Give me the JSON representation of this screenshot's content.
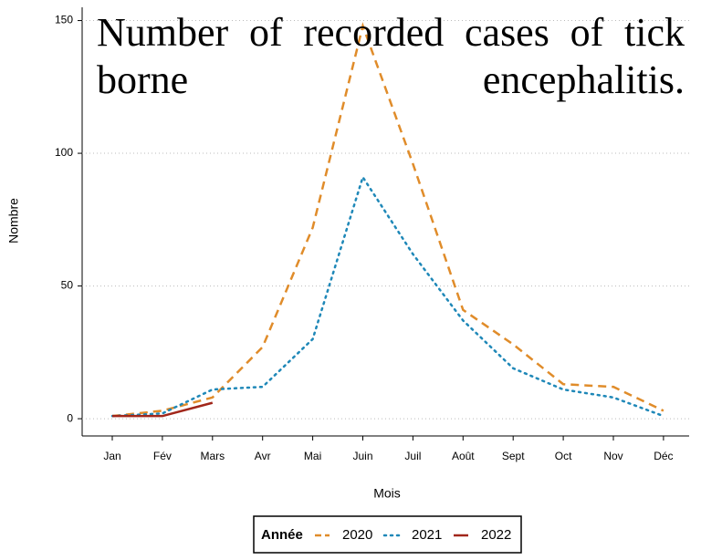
{
  "chart_data": {
    "type": "line",
    "title": "Number of recorded cases of tick borne encephalitis.",
    "x_label": "Mois",
    "y_label": "Nombre",
    "categories": [
      "Jan",
      "Fév",
      "Mars",
      "Avr",
      "Mai",
      "Juin",
      "Juil",
      "Août",
      "Sept",
      "Oct",
      "Nov",
      "Déc"
    ],
    "series": [
      {
        "name": "2020",
        "color": "#e08c2a",
        "dash": "dashed",
        "values": [
          1,
          3,
          8,
          27,
          72,
          148,
          96,
          41,
          28,
          13,
          12,
          3
        ]
      },
      {
        "name": "2021",
        "color": "#1f88b8",
        "dash": "dotted",
        "values": [
          1,
          2,
          11,
          12,
          30,
          91,
          62,
          37,
          19,
          11,
          8,
          1
        ]
      },
      {
        "name": "2022",
        "color": "#a1261a",
        "dash": "solid",
        "values": [
          1,
          1,
          6,
          null,
          null,
          null,
          null,
          null,
          null,
          null,
          null,
          null
        ]
      }
    ],
    "legend_title": "Année",
    "legend_position": "bottom",
    "ylim": [
      -6.5,
      155
    ],
    "yticks": [
      0,
      50,
      100,
      150
    ],
    "grid": true
  }
}
